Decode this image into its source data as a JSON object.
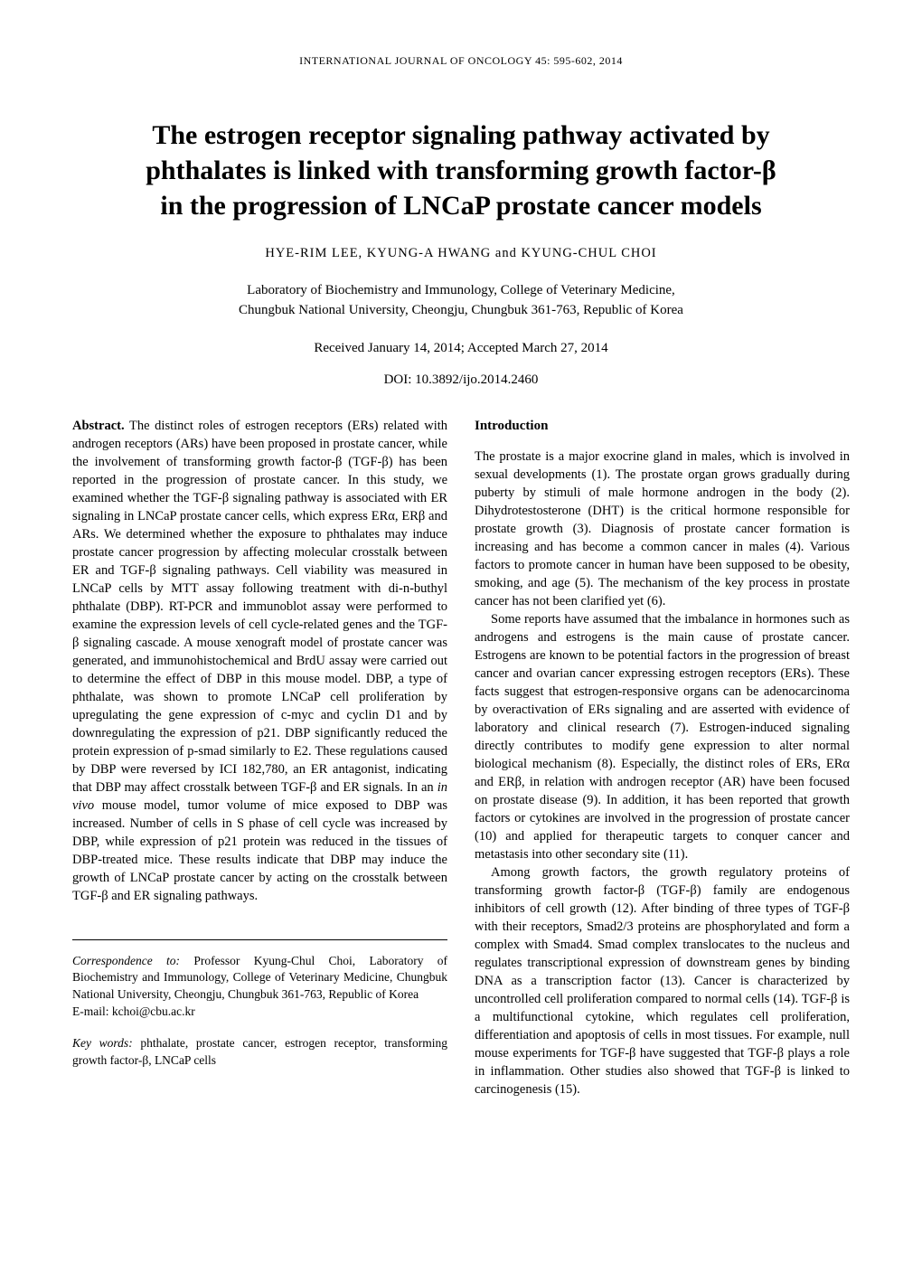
{
  "journal_header": "INTERNATIONAL JOURNAL OF ONCOLOGY  45:  595-602,  2014",
  "title_line1": "The estrogen receptor signaling pathway activated by",
  "title_line2": "phthalates is linked with transforming growth factor-β",
  "title_line3": "in the progression of LNCaP prostate cancer models",
  "authors": "HYE-RIM LEE,  KYUNG-A HWANG  and  KYUNG-CHUL CHOI",
  "affiliation_line1": "Laboratory of Biochemistry and Immunology, College of Veterinary Medicine,",
  "affiliation_line2": "Chungbuk National University, Cheongju, Chungbuk 361-763, Republic of Korea",
  "dates": "Received January 14, 2014;  Accepted March 27, 2014",
  "doi": "DOI: 10.3892/ijo.2014.2460",
  "abstract_label": "Abstract.",
  "abstract_text": " The distinct roles of estrogen receptors (ERs) related with androgen receptors (ARs) have been proposed in prostate cancer, while the involvement of transforming growth factor-β (TGF-β) has been reported in the progression of prostate cancer. In this study, we examined whether the TGF-β signaling pathway is associated with ER signaling in LNCaP prostate cancer cells, which express ERα, ERβ and ARs. We determined whether the exposure to phthalates may induce prostate cancer progression by affecting molecular crosstalk between ER and TGF-β signaling pathways. Cell viability was measured in LNCaP cells by MTT assay following treatment with di-n-buthyl phthalate (DBP). RT-PCR and immunoblot assay were performed to examine the expression levels of cell cycle-related genes and the TGF-β signaling cascade. A mouse xenograft model of prostate cancer was generated, and immunohistochemical and BrdU assay were carried out to determine the effect of DBP in this mouse model. DBP, a type of phthalate, was shown to promote LNCaP cell proliferation by upregulating the gene expression of c-myc and cyclin D1 and by downregulating the expression of p21. DBP significantly reduced the protein expression of p-smad similarly to E2. These regulations caused by DBP were reversed by ICI 182,780, an ER antagonist, indicating that DBP may affect crosstalk between TGF-β and ER signals. In an ",
  "abstract_italic": "in vivo",
  "abstract_text2": " mouse model, tumor volume of mice exposed to DBP was increased. Number of cells in S phase of cell cycle was increased by DBP, while expression of p21 protein was reduced in the tissues of DBP-treated mice. These results indicate that DBP may induce the growth of LNCaP prostate cancer by acting on the crosstalk between TGF-β and ER signaling pathways.",
  "correspondence_label": "Correspondence to:",
  "correspondence_text": " Professor Kyung-Chul Choi, Laboratory of Biochemistry and Immunology, College of Veterinary Medicine, Chungbuk National University, Cheongju, Chungbuk 361-763, Republic of Korea",
  "correspondence_email": "E-mail: kchoi@cbu.ac.kr",
  "keywords_label": "Key words:",
  "keywords_text": " phthalate, prostate cancer, estrogen receptor, transforming growth factor-β, LNCaP cells",
  "intro_heading": "Introduction",
  "intro_p1": "The prostate is a major exocrine gland in males, which is involved in sexual developments (1). The prostate organ grows gradually during puberty by stimuli of male hormone androgen in the body (2). Dihydrotestosterone (DHT) is the critical hormone responsible for prostate growth (3). Diagnosis of prostate cancer formation is increasing and has become a common cancer in males (4). Various factors to promote cancer in human have been supposed to be obesity, smoking, and age (5). The mechanism of the key process in prostate cancer has not been clarified yet (6).",
  "intro_p2": "Some reports have assumed that the imbalance in hormones such as androgens and estrogens is the main cause of prostate cancer. Estrogens are known to be potential factors in the progression of breast cancer and ovarian cancer expressing estrogen receptors (ERs). These facts suggest that estrogen-responsive organs can be adenocarcinoma by overactivation of ERs signaling and are asserted with evidence of laboratory and clinical research (7). Estrogen-induced signaling directly contributes to modify gene expression to alter normal biological mechanism (8). Especially, the distinct roles of ERs, ERα and ERβ, in relation with androgen receptor (AR) have been focused on prostate disease (9). In addition, it has been reported that growth factors or cytokines are involved in the progression of prostate cancer (10) and applied for therapeutic targets to conquer cancer and metastasis into other secondary site (11).",
  "intro_p3": "Among growth factors, the growth regulatory proteins of transforming growth factor-β (TGF-β) family are endogenous inhibitors of cell growth (12). After binding of three types of TGF-β with their receptors, Smad2/3 proteins are phosphorylated and form a complex with Smad4. Smad complex translocates to the nucleus and regulates transcriptional expression of downstream genes by binding DNA as a transcription factor (13). Cancer is characterized by uncontrolled cell proliferation compared to normal cells (14). TGF-β is a multifunctional cytokine, which regulates cell proliferation, differentiation and apoptosis of cells in most tissues. For example, null mouse experiments for TGF-β have suggested that TGF-β plays a role in inflammation. Other studies also showed that TGF-β is linked to carcinogenesis (15)."
}
